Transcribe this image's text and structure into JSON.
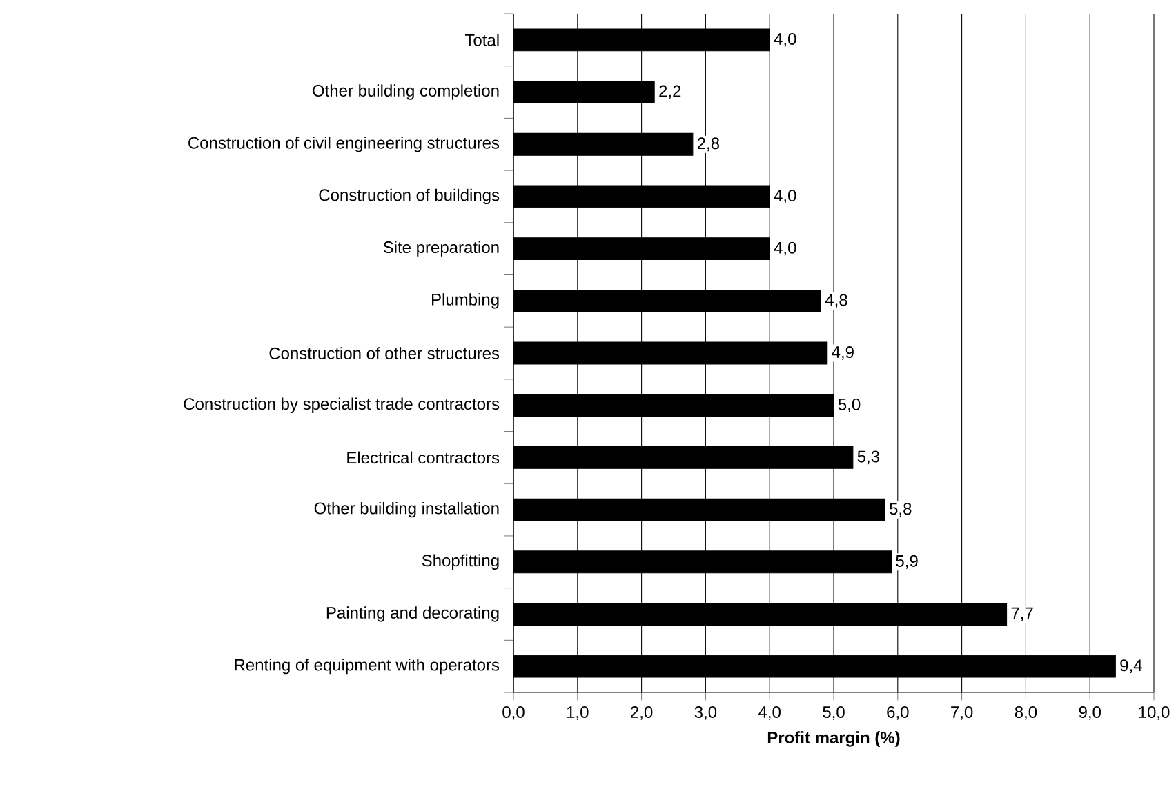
{
  "chart_data": {
    "type": "bar",
    "orientation": "horizontal",
    "xlabel": "Profit margin (%)",
    "categories": [
      "Total",
      "Other building completion",
      "Construction of civil engineering structures",
      "Construction of buildings",
      "Site preparation",
      "Plumbing",
      "Construction of other structures",
      "Construction by specialist trade contractors",
      "Electrical contractors",
      "Other building installation",
      "Shopfitting",
      "Painting and decorating",
      "Renting of equipment with operators"
    ],
    "values": [
      4.0,
      2.2,
      2.8,
      4.0,
      4.0,
      4.8,
      4.9,
      5.0,
      5.3,
      5.8,
      5.9,
      7.7,
      9.4
    ],
    "value_labels": [
      "4,0",
      "2,2",
      "2,8",
      "4,0",
      "4,0",
      "4,8",
      "4,9",
      "5,0",
      "5,3",
      "5,8",
      "5,9",
      "7,7",
      "9,4"
    ],
    "color": "#000000",
    "xlim": [
      0,
      10
    ],
    "xticks": [
      {
        "value": 0,
        "label": "0,0"
      },
      {
        "value": 1,
        "label": "1,0"
      },
      {
        "value": 2,
        "label": "2,0"
      },
      {
        "value": 3,
        "label": "3,0"
      },
      {
        "value": 4,
        "label": "4,0"
      },
      {
        "value": 5,
        "label": "5,0"
      },
      {
        "value": 6,
        "label": "6,0"
      },
      {
        "value": 7,
        "label": "7,0"
      },
      {
        "value": 8,
        "label": "8,0"
      },
      {
        "value": 9,
        "label": "9,0"
      },
      {
        "value": 10,
        "label": "10,0"
      }
    ],
    "grid": "x"
  }
}
